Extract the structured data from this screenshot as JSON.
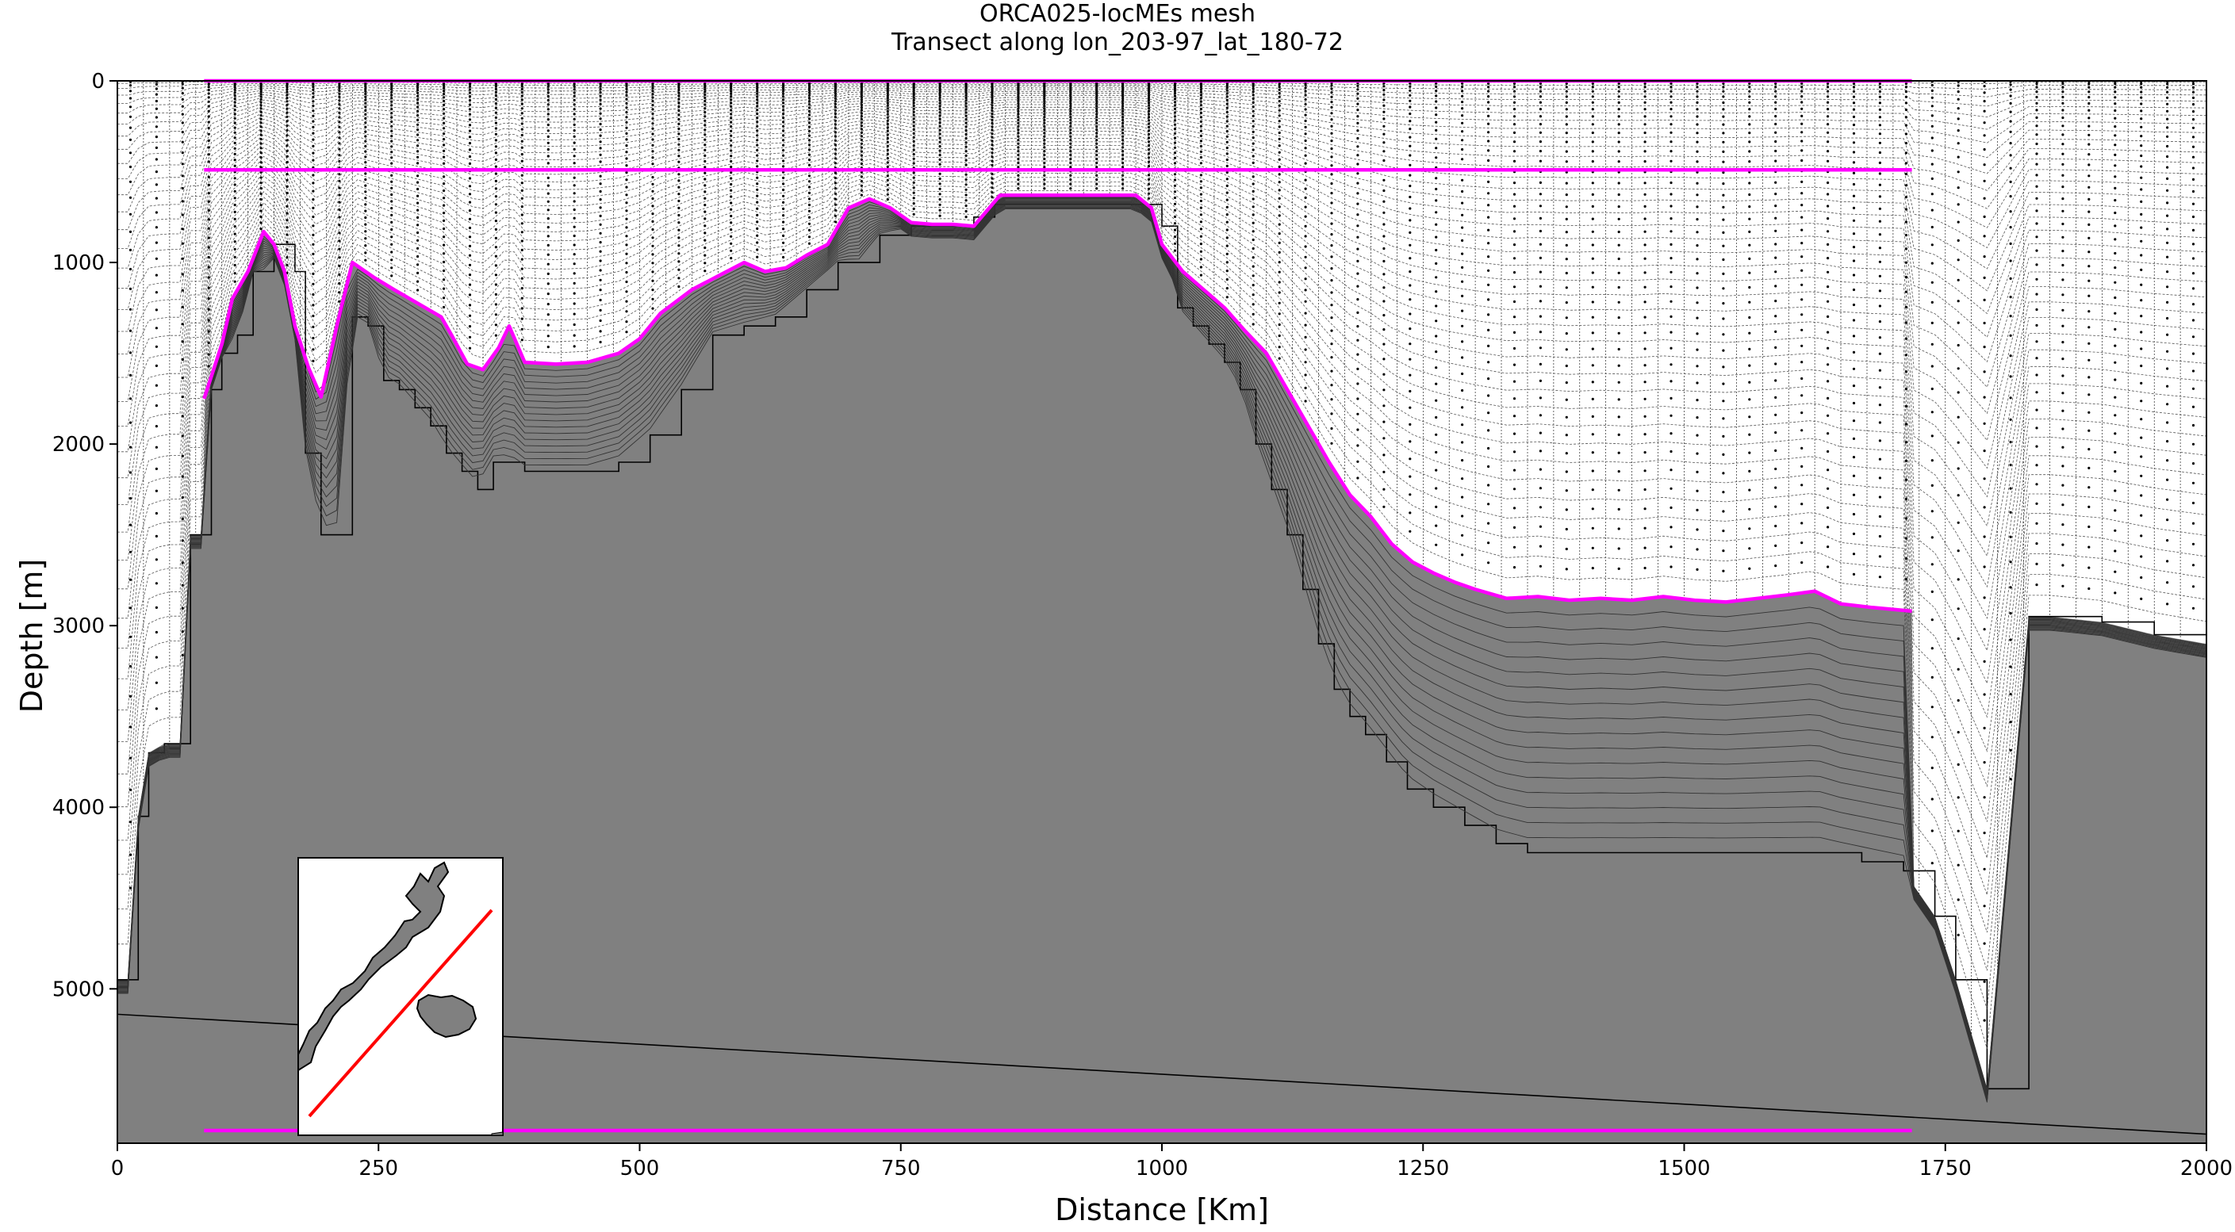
{
  "chart_data": {
    "type": "area",
    "title": "ORCA025-locMEs mesh",
    "subtitle": "Transect along lon_203-97_lat_180-72",
    "xlabel": "Distance [Km]",
    "ylabel": "Depth [m]",
    "xlim": [
      0,
      2000
    ],
    "ylim": [
      5850,
      0
    ],
    "x_ticks": [
      0,
      250,
      500,
      750,
      1000,
      1250,
      1500,
      1750,
      2000
    ],
    "y_ticks": [
      0,
      1000,
      2000,
      3000,
      4000,
      5000
    ],
    "grid": false,
    "legend": "none",
    "colors": {
      "land": "#808080",
      "envelope": "#ff00ff",
      "section_line": "#ff0000",
      "mesh_lines": "#000000"
    },
    "inset": {
      "placement": "lower-left",
      "content": "map with transect line",
      "transect_color": "#ff0000"
    },
    "series": [
      {
        "kind": "envelope_bottom",
        "x": [
          83,
          100,
          110,
          125,
          140,
          150,
          160,
          170,
          183,
          195,
          210,
          225,
          245,
          265,
          280,
          295,
          310,
          320,
          335,
          350,
          365,
          375,
          390,
          420,
          450,
          480,
          500,
          520,
          550,
          580,
          600,
          620,
          640,
          660,
          680,
          700,
          720,
          740,
          760,
          780,
          800,
          820,
          845,
          880,
          920,
          975,
          990,
          1000,
          1020,
          1040,
          1060,
          1080,
          1100,
          1120,
          1140,
          1160,
          1180,
          1200,
          1220,
          1240,
          1260,
          1280,
          1300,
          1330,
          1360,
          1390,
          1420,
          1450,
          1480,
          1510,
          1540,
          1570,
          1600,
          1625,
          1650,
          1680,
          1718
        ],
        "y": [
          1750,
          1450,
          1200,
          1050,
          830,
          900,
          1050,
          1350,
          1580,
          1740,
          1350,
          1000,
          1080,
          1150,
          1200,
          1250,
          1300,
          1400,
          1560,
          1590,
          1470,
          1350,
          1550,
          1560,
          1550,
          1500,
          1420,
          1280,
          1150,
          1060,
          1000,
          1050,
          1030,
          960,
          900,
          700,
          650,
          700,
          780,
          790,
          790,
          800,
          630,
          630,
          630,
          630,
          700,
          900,
          1050,
          1150,
          1250,
          1380,
          1500,
          1700,
          1900,
          2100,
          2280,
          2400,
          2550,
          2650,
          2710,
          2760,
          2800,
          2850,
          2840,
          2860,
          2850,
          2860,
          2840,
          2860,
          2870,
          2850,
          2830,
          2810,
          2880,
          2900,
          2920
        ]
      },
      {
        "kind": "model_bathymetry_steps",
        "x": [
          0,
          10,
          20,
          30,
          45,
          60,
          70,
          80,
          90,
          100,
          115,
          130,
          140,
          150,
          160,
          170,
          180,
          195,
          210,
          225,
          240,
          255,
          270,
          285,
          300,
          315,
          330,
          345,
          360,
          375,
          390,
          420,
          450,
          480,
          510,
          540,
          570,
          600,
          630,
          660,
          690,
          710,
          730,
          760,
          790,
          820,
          840,
          870,
          920,
          980,
          1000,
          1015,
          1030,
          1045,
          1060,
          1075,
          1090,
          1105,
          1120,
          1135,
          1150,
          1165,
          1180,
          1195,
          1215,
          1235,
          1260,
          1290,
          1320,
          1350,
          1390,
          1430,
          1470,
          1510,
          1550,
          1590,
          1630,
          1670,
          1710,
          1740,
          1760,
          1790,
          1830,
          1850,
          1900,
          1950,
          2000
        ],
        "y": [
          4950,
          4950,
          4050,
          3700,
          3650,
          3650,
          2500,
          2500,
          1700,
          1500,
          1400,
          1050,
          1050,
          900,
          900,
          1050,
          2050,
          2500,
          2500,
          1300,
          1350,
          1650,
          1700,
          1800,
          1900,
          2050,
          2150,
          2250,
          2100,
          2100,
          2150,
          2150,
          2150,
          2100,
          1950,
          1700,
          1400,
          1350,
          1300,
          1150,
          1000,
          1000,
          850,
          800,
          800,
          750,
          680,
          680,
          680,
          680,
          800,
          1250,
          1350,
          1450,
          1550,
          1700,
          2000,
          2250,
          2500,
          2800,
          3100,
          3350,
          3500,
          3600,
          3750,
          3900,
          4000,
          4100,
          4200,
          4250,
          4250,
          4250,
          4250,
          4250,
          4250,
          4250,
          4250,
          4300,
          4350,
          4600,
          4950,
          5550,
          2950,
          2950,
          2980,
          3050,
          3100
        ]
      },
      {
        "kind": "envelope_top",
        "x": [
          83,
          1718
        ],
        "y": [
          0,
          0
        ]
      },
      {
        "kind": "envelope_mid",
        "x": [
          83,
          1718
        ],
        "y": [
          490,
          490
        ]
      },
      {
        "kind": "envelope_deep",
        "x": [
          83,
          1718
        ],
        "y": [
          5780,
          5780
        ]
      },
      {
        "kind": "sloping_line",
        "x": [
          0,
          2000
        ],
        "y": [
          5140,
          5800
        ]
      }
    ]
  }
}
